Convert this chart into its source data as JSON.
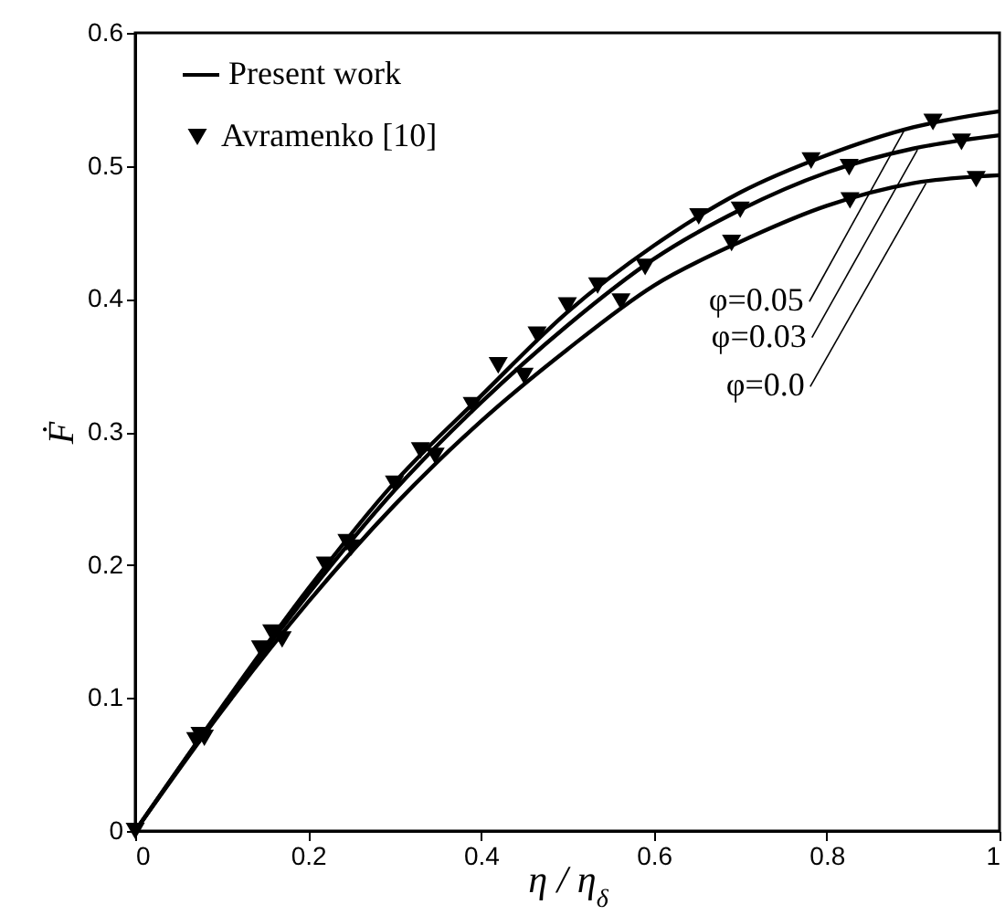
{
  "chart_data": {
    "type": "line",
    "xlabel": "η / η$_{δ}$",
    "ylabel": "Ḟ",
    "xlim": [
      0,
      1
    ],
    "ylim": [
      0,
      0.6
    ],
    "xticks": [
      0,
      0.2,
      0.4,
      0.6,
      0.8,
      1
    ],
    "yticks": [
      0,
      0.1,
      0.2,
      0.3,
      0.4,
      0.5,
      0.6
    ],
    "grid": false,
    "legend": "top left",
    "line_style": "solid",
    "series": [
      {
        "name": "Present work",
        "marker": "none",
        "color": "#000000",
        "x": [
          0,
          0.1,
          0.2,
          0.3,
          0.4,
          0.5,
          0.6,
          0.7,
          0.8,
          0.9,
          1
        ],
        "values": [
          0,
          0.093,
          0.182,
          0.262,
          0.327,
          0.39,
          0.44,
          0.48,
          0.508,
          0.529,
          0.541
        ]
      },
      {
        "marker": "none",
        "color": "#000000",
        "x": [
          0,
          0.1,
          0.2,
          0.3,
          0.4,
          0.5,
          0.6,
          0.7,
          0.8,
          0.9,
          1
        ],
        "values": [
          0,
          0.092,
          0.178,
          0.256,
          0.322,
          0.38,
          0.43,
          0.467,
          0.495,
          0.513,
          0.523
        ]
      },
      {
        "marker": "none",
        "color": "#000000",
        "x": [
          0,
          0.1,
          0.2,
          0.3,
          0.4,
          0.5,
          0.6,
          0.7,
          0.8,
          0.9,
          1
        ],
        "values": [
          0,
          0.09,
          0.172,
          0.245,
          0.308,
          0.362,
          0.41,
          0.443,
          0.47,
          0.487,
          0.493
        ]
      },
      {
        "name": "Avramenko [10]",
        "type": "scatter",
        "marker": "triangle",
        "color": "#000000",
        "x": [
          0,
          0.07,
          0.145,
          0.22,
          0.3,
          0.39,
          0.465,
          0.535,
          0.652,
          0.782,
          0.923
        ],
        "values": [
          0,
          0.068,
          0.137,
          0.2,
          0.261,
          0.32,
          0.373,
          0.41,
          0.462,
          0.504,
          0.533
        ]
      },
      {
        "type": "scatter",
        "marker": "triangle",
        "color": "#000000",
        "x": [
          0.075,
          0.158,
          0.245,
          0.33,
          0.42,
          0.5,
          0.59,
          0.7,
          0.826,
          0.956
        ],
        "values": [
          0.072,
          0.149,
          0.217,
          0.286,
          0.35,
          0.395,
          0.424,
          0.467,
          0.499,
          0.518
        ]
      },
      {
        "type": "scatter",
        "marker": "triangle",
        "color": "#000000",
        "x": [
          0.08,
          0.17,
          0.25,
          0.347,
          0.45,
          0.562,
          0.69,
          0.827,
          0.973
        ],
        "values": [
          0.07,
          0.144,
          0.213,
          0.282,
          0.342,
          0.398,
          0.442,
          0.474,
          0.49
        ]
      }
    ],
    "annotations": [
      {
        "text": "φ=0.05",
        "x": 0.89,
        "y": 0.527
      },
      {
        "text": "φ=0.03",
        "x": 0.905,
        "y": 0.512
      },
      {
        "text": "φ=0.0",
        "x": 0.915,
        "y": 0.487
      }
    ]
  }
}
